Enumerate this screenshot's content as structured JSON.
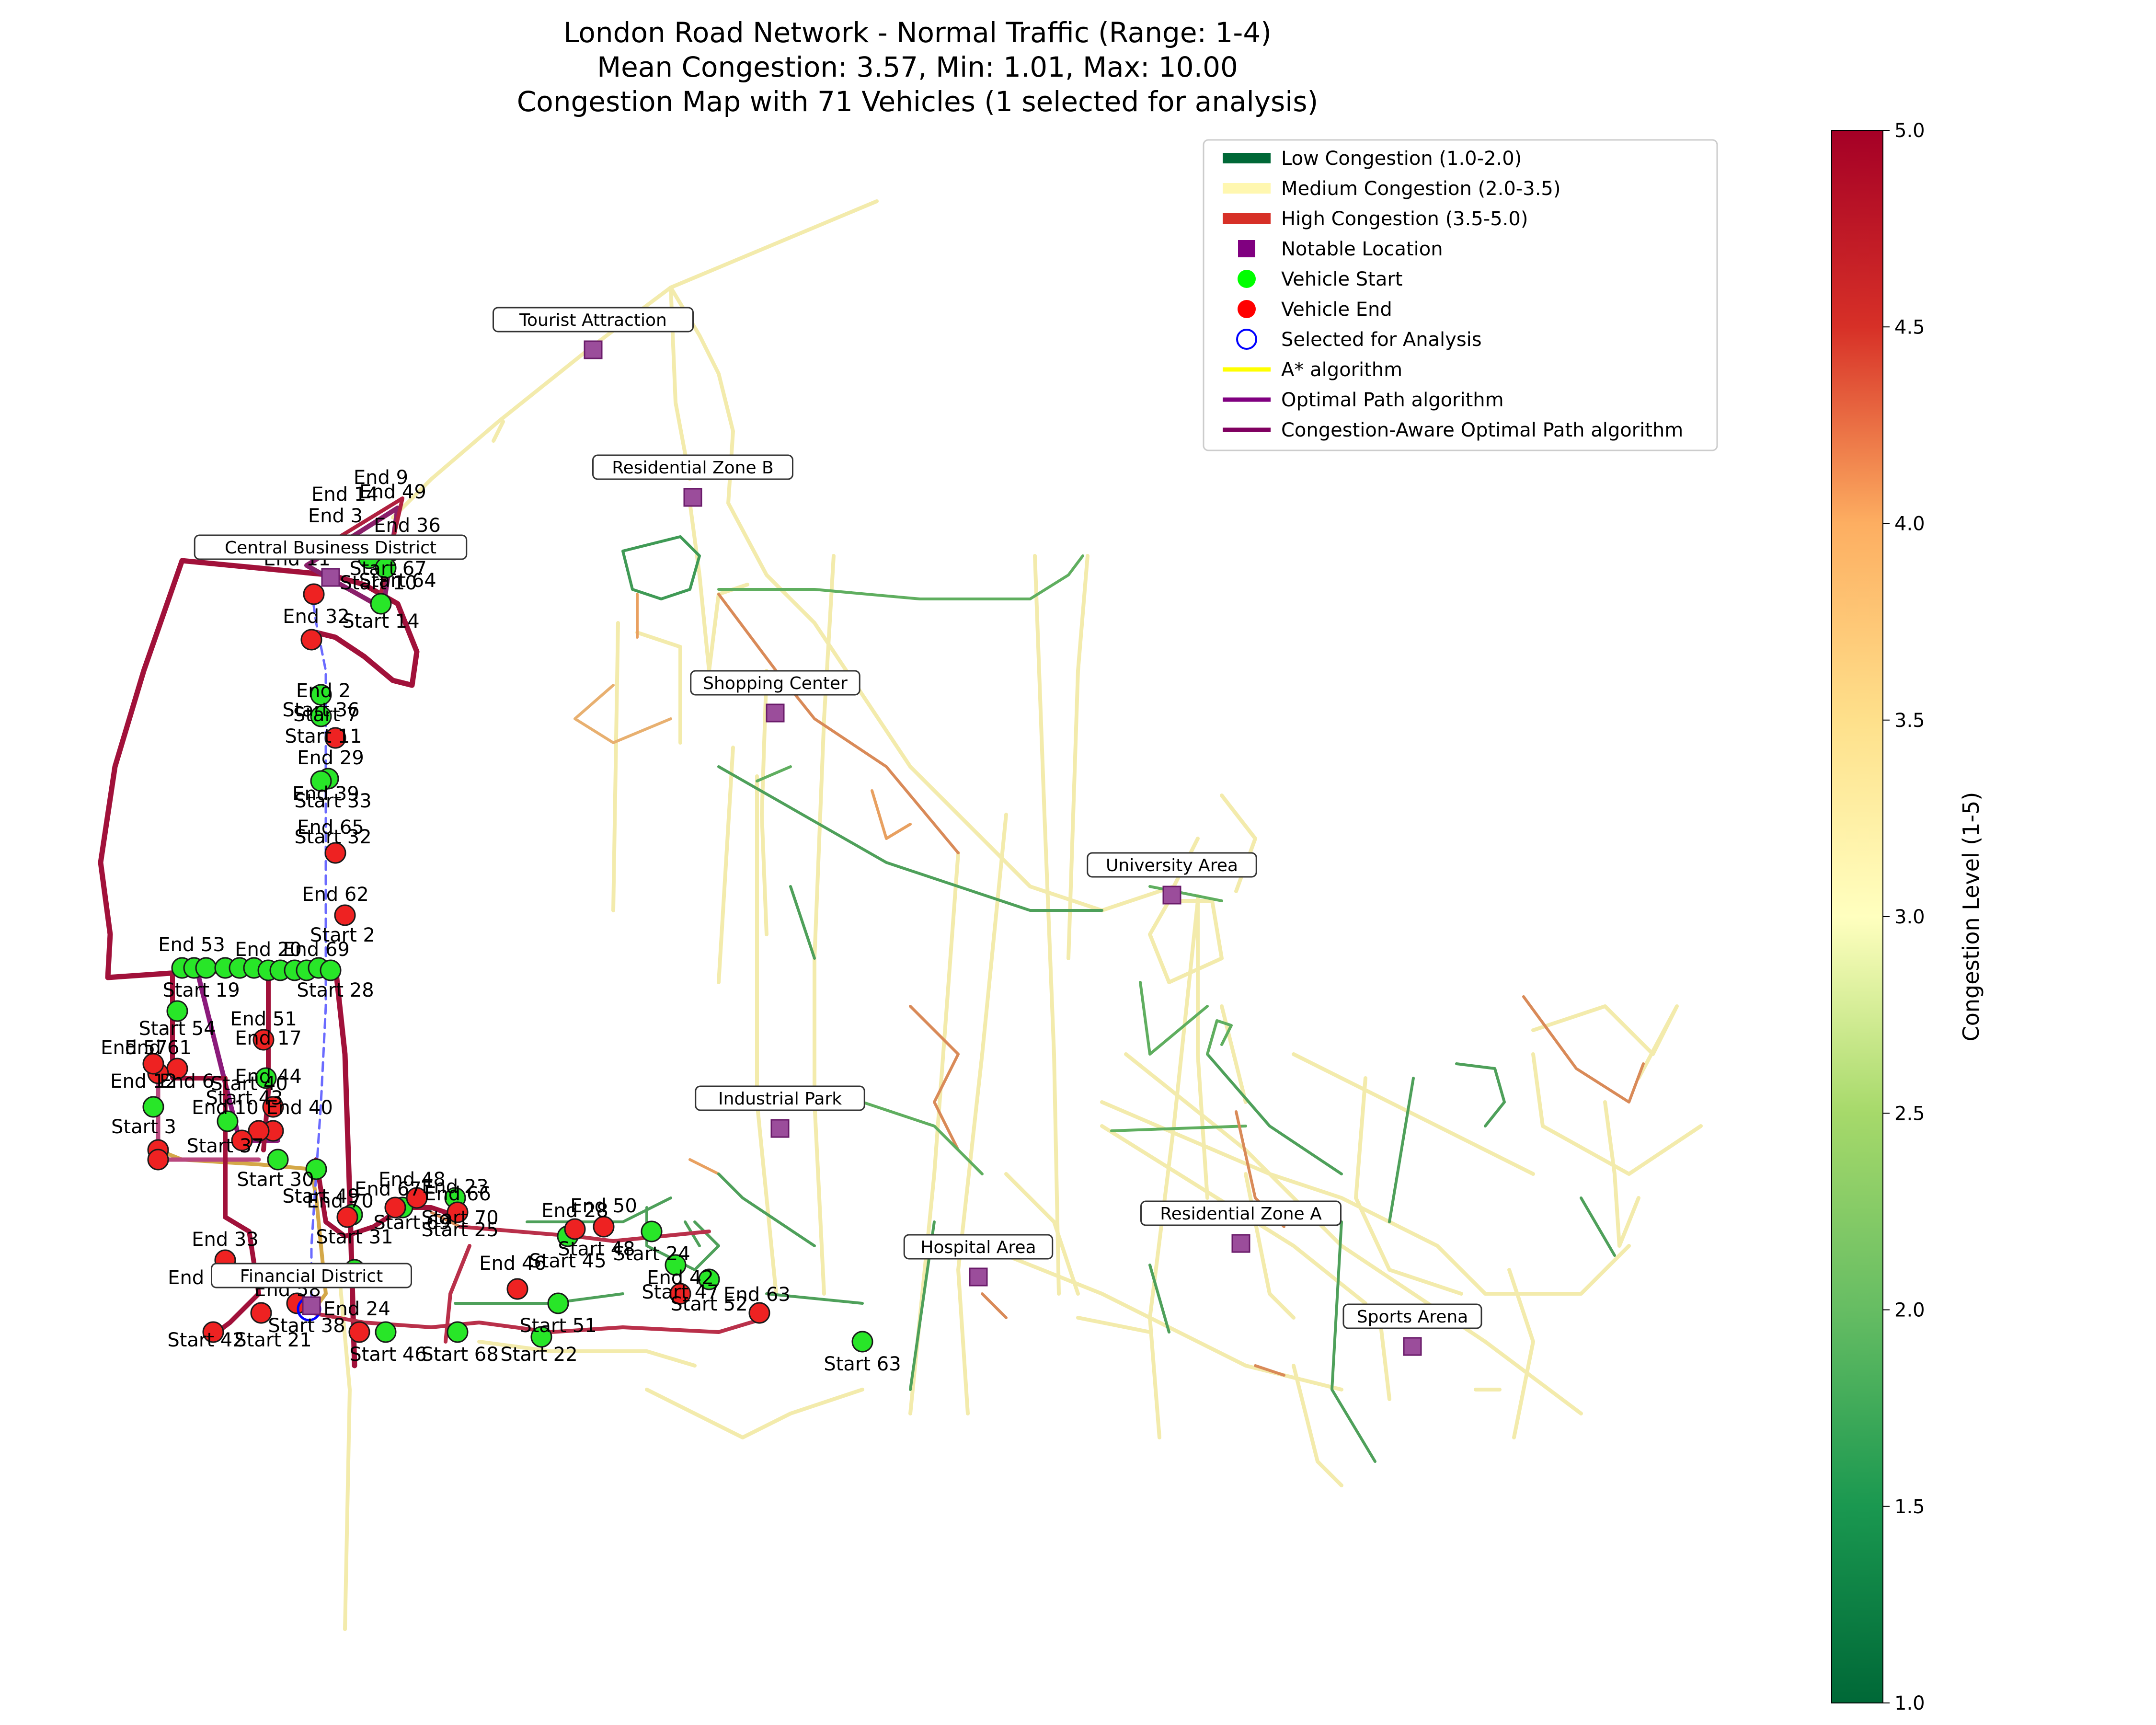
{
  "chart_data": {
    "type": "map",
    "title_lines": [
      "London Road Network - Normal Traffic (Range: 1-4)",
      "Mean Congestion: 3.57, Min: 1.01, Max: 10.00",
      "Congestion Map with 71 Vehicles (1 selected for analysis)"
    ],
    "legend": [
      {
        "label": "Low Congestion (1.0-2.0)",
        "kind": "line",
        "color": "#006837"
      },
      {
        "label": "Medium Congestion (2.0-3.5)",
        "kind": "line",
        "color": "#fff7b0"
      },
      {
        "label": "High Congestion (3.5-5.0)",
        "kind": "line",
        "color": "#d73027"
      },
      {
        "label": "Notable Location",
        "kind": "square",
        "color": "#800080"
      },
      {
        "label": "Vehicle Start",
        "kind": "dot",
        "color": "#00ff00"
      },
      {
        "label": "Vehicle End",
        "kind": "dot",
        "color": "#ff0000"
      },
      {
        "label": "Selected for Analysis",
        "kind": "ring",
        "color": "#0000ff"
      },
      {
        "label": "A* algorithm",
        "kind": "line",
        "color": "#ffff00"
      },
      {
        "label": "Optimal Path algorithm",
        "kind": "line",
        "color": "#800080"
      },
      {
        "label": "Congestion-Aware Optimal Path algorithm",
        "kind": "line",
        "color": "#800060"
      }
    ],
    "colorbar": {
      "label": "Congestion Level (1-5)",
      "min": 1.0,
      "max": 5.0,
      "ticks": [
        "1.0",
        "1.5",
        "2.0",
        "2.5",
        "3.0",
        "3.5",
        "4.0",
        "4.5",
        "5.0"
      ],
      "colormap": "RdYlGn_r"
    },
    "locations": [
      "Tourist Attraction",
      "Residential Zone B",
      "Central Business District",
      "Shopping Center",
      "University Area",
      "Industrial Park",
      "Hospital Area",
      "Residential Zone A",
      "Sports Arena",
      "Financial District"
    ],
    "vehicle_labels": [
      "End 9",
      "End 49",
      "End 14",
      "End 3",
      "End 36",
      "End 52",
      "End 11",
      "Start 67",
      "Start 64",
      "Start 10",
      "Start 14",
      "End 32",
      "End 2",
      "Start 36",
      "Start 7",
      "Start 11",
      "End 29",
      "End 39",
      "Start 33",
      "End 65",
      "Start 32",
      "End 62",
      "Start 2",
      "End 53",
      "End 20",
      "End 69",
      "Start 19",
      "Start 28",
      "Start 54",
      "End 51",
      "End 17",
      "End 57",
      "End 61",
      "End 12",
      "End 6",
      "End 44",
      "Start 40",
      "Start 43",
      "End 40",
      "End 10",
      "Start 3",
      "Start 37",
      "Start 30",
      "Start 49",
      "End 70",
      "Start 31",
      "End 48",
      "End 67",
      "End 23",
      "End 66",
      "Start 69",
      "Start 70",
      "Start 25",
      "End 28",
      "End 50",
      "Start 48",
      "Start 24",
      "Start 45",
      "End 46",
      "End 42",
      "Start 47",
      "Start 52",
      "End 63",
      "End 33",
      "End 21",
      "End 24",
      "End 58",
      "Start 42",
      "Start 21",
      "Start 38",
      "Start 46",
      "Start 68",
      "Start 22",
      "Start 51",
      "Start 63"
    ]
  }
}
